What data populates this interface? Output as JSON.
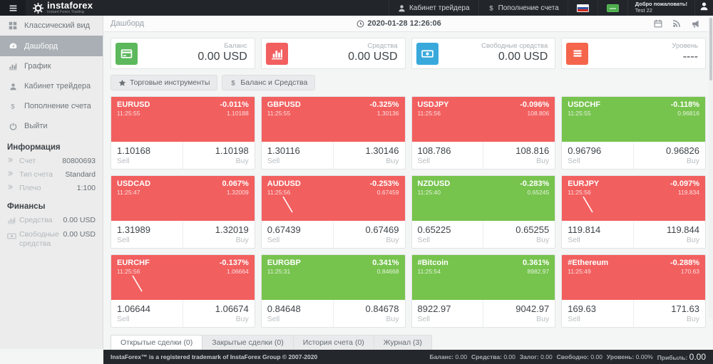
{
  "header": {
    "brand": "instaforex",
    "brand_sub": "Instant Forex Trading",
    "menu": [
      {
        "label": "Кабинет трейдера",
        "icon": "user-icon"
      },
      {
        "label": "Пополнение счета",
        "icon": "dollar-icon"
      }
    ],
    "welcome_line1": "Добро пожаловать!",
    "welcome_line2": "Test 22"
  },
  "sidebar": {
    "items": [
      {
        "label": "Классический вид",
        "icon": "grid-icon",
        "active": false
      },
      {
        "label": "Дашборд",
        "icon": "dashboard-icon",
        "active": true
      },
      {
        "label": "График",
        "icon": "chart-icon",
        "active": false
      },
      {
        "label": "Кабинет трейдера",
        "icon": "user-icon",
        "active": false
      },
      {
        "label": "Пополнение счета",
        "icon": "dollar-icon",
        "active": false
      },
      {
        "label": "Выйти",
        "icon": "power-icon",
        "active": false
      }
    ],
    "info_title": "Информация",
    "info_rows": [
      {
        "label": "Счет",
        "value": "80800693",
        "icon": "chevrons"
      },
      {
        "label": "Тип счета",
        "value": "Standard",
        "icon": "chevrons"
      },
      {
        "label": "Плечо",
        "value": "1:100",
        "icon": "chevrons"
      }
    ],
    "finance_title": "Финансы",
    "finance_rows": [
      {
        "label": "Средства",
        "value": "0.00 USD",
        "icon": "chart-icon"
      },
      {
        "label": "Свободные средства",
        "value": "0.00 USD",
        "icon": "banknote-icon"
      }
    ]
  },
  "toolbar": {
    "breadcrumb": "Дашборд",
    "datetime": "2020-01-28 12:26:06",
    "icons": [
      "calendar-icon",
      "rss-icon",
      "megaphone-icon"
    ]
  },
  "stat_cards": [
    {
      "label": "Баланс",
      "value": "0.00 USD",
      "icon": "card-icon",
      "color": "#5cb85c"
    },
    {
      "label": "Средства",
      "value": "0.00 USD",
      "icon": "bars-icon",
      "color": "#f25f5f"
    },
    {
      "label": "Свободные средства",
      "value": "0.00 USD",
      "icon": "banknote-icon",
      "color": "#39a9dc"
    },
    {
      "label": "Уровень",
      "value": "----",
      "icon": "menu-icon",
      "color": "#f4654c"
    }
  ],
  "filter_buttons": [
    {
      "label": "Торговые инструменты",
      "icon": "star-icon"
    },
    {
      "label": "Баланс и Средства",
      "icon": "dollar-icon"
    }
  ],
  "labels": {
    "sell": "Sell",
    "buy": "Buy"
  },
  "tiles": [
    {
      "symbol": "EURUSD",
      "time": "11:25:55",
      "change": "-0.011%",
      "last": "1.10188",
      "sell": "1.10168",
      "buy": "1.10198",
      "trend": "red",
      "spark": false
    },
    {
      "symbol": "GBPUSD",
      "time": "11:25:55",
      "change": "-0.325%",
      "last": "1.30136",
      "sell": "1.30116",
      "buy": "1.30146",
      "trend": "red",
      "spark": false
    },
    {
      "symbol": "USDJPY",
      "time": "11:25:56",
      "change": "-0.096%",
      "last": "108.806",
      "sell": "108.786",
      "buy": "108.816",
      "trend": "red",
      "spark": false
    },
    {
      "symbol": "USDCHF",
      "time": "11:25:55",
      "change": "-0.118%",
      "last": "0.96816",
      "sell": "0.96796",
      "buy": "0.96826",
      "trend": "green",
      "spark": false
    },
    {
      "symbol": "USDCAD",
      "time": "11:25:47",
      "change": "0.067%",
      "last": "1.32009",
      "sell": "1.31989",
      "buy": "1.32019",
      "trend": "red",
      "spark": false
    },
    {
      "symbol": "AUDUSD",
      "time": "11:25:56",
      "change": "-0.253%",
      "last": "0.67459",
      "sell": "0.67439",
      "buy": "0.67469",
      "trend": "red",
      "spark": true
    },
    {
      "symbol": "NZDUSD",
      "time": "11:25:40",
      "change": "-0.283%",
      "last": "0.65245",
      "sell": "0.65225",
      "buy": "0.65255",
      "trend": "green",
      "spark": false
    },
    {
      "symbol": "EURJPY",
      "time": "11:25:56",
      "change": "-0.097%",
      "last": "119.834",
      "sell": "119.814",
      "buy": "119.844",
      "trend": "red",
      "spark": true
    },
    {
      "symbol": "EURCHF",
      "time": "11:25:56",
      "change": "-0.137%",
      "last": "1.06664",
      "sell": "1.06644",
      "buy": "1.06674",
      "trend": "red",
      "spark": true
    },
    {
      "symbol": "EURGBP",
      "time": "11:25:31",
      "change": "0.341%",
      "last": "0.84668",
      "sell": "0.84648",
      "buy": "0.84678",
      "trend": "green",
      "spark": false
    },
    {
      "symbol": "#Bitcoin",
      "time": "11:25:54",
      "change": "0.361%",
      "last": "8982.97",
      "sell": "8922.97",
      "buy": "9042.97",
      "trend": "green",
      "spark": false
    },
    {
      "symbol": "#Ethereum",
      "time": "11:25:49",
      "change": "-0.288%",
      "last": "170.63",
      "sell": "169.63",
      "buy": "171.63",
      "trend": "red",
      "spark": false
    }
  ],
  "tabs": [
    {
      "label": "Открытые сделки (0)",
      "active": true
    },
    {
      "label": "Закрытые сделки (0)",
      "active": false
    },
    {
      "label": "История счета (0)",
      "active": false
    },
    {
      "label": "Журнал (3)",
      "active": false
    }
  ],
  "footer": {
    "left": "InstaForex™ is a registered trademark of InstaForex Group © 2007-2020",
    "stats": [
      {
        "label": "Баланс:",
        "value": "0.00"
      },
      {
        "label": "Средства:",
        "value": "0.00"
      },
      {
        "label": "Залог:",
        "value": "0.00"
      },
      {
        "label": "Свободно:",
        "value": "0.00"
      },
      {
        "label": "Уровень:",
        "value": "0.00%"
      },
      {
        "label": "Прибыль:",
        "value": "0.00",
        "big": true
      }
    ]
  },
  "colors": {
    "tile_red": "#f25f5f",
    "tile_green": "#76c34d",
    "header_bg": "#22262b",
    "accent_green": "#4cae4c"
  }
}
